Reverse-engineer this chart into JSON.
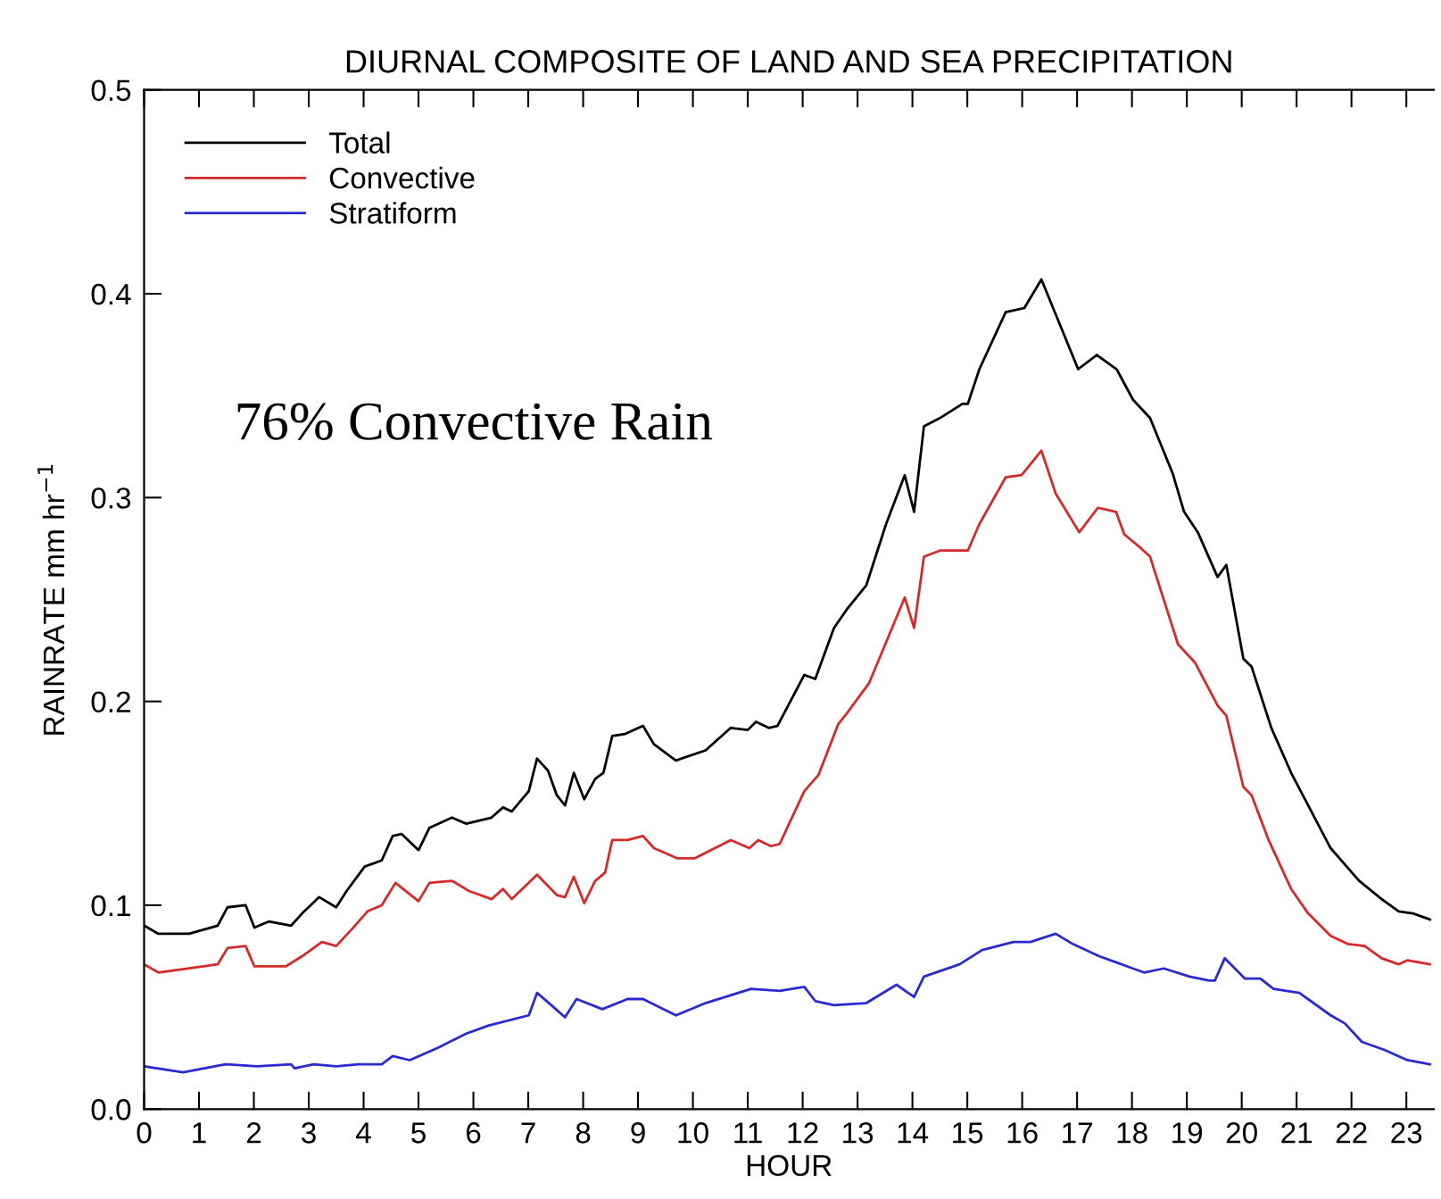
{
  "chart_data": {
    "type": "line",
    "title": "DIURNAL COMPOSITE OF LAND AND SEA PRECIPITATION",
    "xlabel": "HOUR",
    "ylabel": "RAINRATE mm hr$^{−1}$",
    "annotations": [
      "76% Convective Rain"
    ],
    "xlim": [
      0,
      23.5
    ],
    "xticks": [
      0,
      1,
      2,
      3,
      4,
      5,
      6,
      7,
      8,
      9,
      10,
      11,
      12,
      13,
      14,
      15,
      16,
      17,
      18,
      19,
      20,
      21,
      22,
      23
    ],
    "ylim": [
      0,
      0.5
    ],
    "yticks": [
      {
        "value": 0,
        "label": "0.0"
      },
      0.1,
      0.2,
      0.3,
      0.4,
      0.5
    ],
    "grid": false,
    "legend": "top left",
    "marker": "none",
    "line_style": "solid",
    "series": [
      {
        "name": "Total",
        "color": "#000000",
        "x": [
          0,
          0.26,
          0.82,
          1.34,
          1.52,
          1.85,
          2.01,
          2.27,
          2.68,
          2.88,
          3.19,
          3.5,
          3.69,
          4.02,
          4.33,
          4.53,
          4.69,
          5.0,
          5.2,
          5.61,
          5.87,
          6.33,
          6.54,
          6.7,
          7.01,
          7.16,
          7.36,
          7.52,
          7.67,
          7.83,
          8.02,
          8.22,
          8.37,
          8.53,
          8.76,
          9.09,
          9.29,
          9.69,
          10.23,
          10.69,
          11.0,
          11.15,
          11.38,
          11.54,
          12.03,
          12.23,
          12.57,
          12.8,
          13.16,
          13.52,
          13.86,
          14.03,
          14.21,
          14.5,
          14.91,
          15.01,
          15.22,
          15.7,
          16.04,
          16.35,
          17.02,
          17.36,
          17.72,
          18.02,
          18.33,
          18.74,
          18.95,
          19.2,
          19.56,
          19.72,
          20.03,
          20.18,
          20.54,
          20.9,
          21.62,
          22.14,
          22.55,
          22.86,
          23.12,
          23.43
        ],
        "values": [
          0.09,
          0.086,
          0.086,
          0.09,
          0.099,
          0.1,
          0.089,
          0.092,
          0.09,
          0.096,
          0.104,
          0.099,
          0.107,
          0.119,
          0.122,
          0.134,
          0.135,
          0.127,
          0.138,
          0.143,
          0.14,
          0.143,
          0.148,
          0.146,
          0.156,
          0.172,
          0.166,
          0.154,
          0.149,
          0.165,
          0.152,
          0.162,
          0.165,
          0.183,
          0.184,
          0.188,
          0.179,
          0.171,
          0.176,
          0.187,
          0.186,
          0.19,
          0.187,
          0.188,
          0.213,
          0.211,
          0.236,
          0.245,
          0.257,
          0.287,
          0.311,
          0.293,
          0.335,
          0.339,
          0.346,
          0.346,
          0.363,
          0.391,
          0.393,
          0.407,
          0.363,
          0.37,
          0.363,
          0.348,
          0.339,
          0.312,
          0.293,
          0.283,
          0.261,
          0.267,
          0.221,
          0.217,
          0.187,
          0.165,
          0.128,
          0.112,
          0.103,
          0.097,
          0.096,
          0.093
        ]
      },
      {
        "name": "Convective",
        "color": "#d42a2a",
        "x": [
          0,
          0.26,
          0.82,
          1.34,
          1.52,
          1.85,
          2.01,
          2.58,
          2.88,
          3.24,
          3.5,
          3.81,
          4.07,
          4.33,
          4.58,
          5.0,
          5.2,
          5.61,
          5.92,
          6.33,
          6.54,
          6.7,
          7.16,
          7.52,
          7.67,
          7.83,
          8.02,
          8.22,
          8.4,
          8.53,
          8.81,
          9.09,
          9.29,
          9.72,
          10.03,
          10.69,
          11.03,
          11.19,
          11.42,
          11.58,
          12.03,
          12.29,
          12.65,
          12.8,
          13.21,
          13.52,
          13.86,
          14.03,
          14.21,
          14.5,
          15.01,
          15.22,
          15.7,
          15.99,
          16.35,
          16.61,
          17.04,
          17.38,
          17.71,
          17.86,
          18.17,
          18.33,
          18.84,
          19.15,
          19.56,
          19.72,
          20.03,
          20.18,
          20.49,
          20.9,
          21.21,
          21.62,
          21.93,
          22.24,
          22.55,
          22.86,
          23.02,
          23.43
        ],
        "values": [
          0.071,
          0.067,
          0.069,
          0.071,
          0.079,
          0.08,
          0.07,
          0.07,
          0.075,
          0.082,
          0.08,
          0.089,
          0.097,
          0.1,
          0.111,
          0.102,
          0.111,
          0.112,
          0.107,
          0.103,
          0.108,
          0.103,
          0.115,
          0.105,
          0.104,
          0.114,
          0.101,
          0.112,
          0.116,
          0.132,
          0.132,
          0.134,
          0.128,
          0.123,
          0.123,
          0.132,
          0.128,
          0.132,
          0.129,
          0.13,
          0.156,
          0.164,
          0.189,
          0.194,
          0.209,
          0.229,
          0.251,
          0.236,
          0.271,
          0.274,
          0.274,
          0.287,
          0.31,
          0.311,
          0.323,
          0.302,
          0.283,
          0.295,
          0.293,
          0.282,
          0.275,
          0.271,
          0.228,
          0.219,
          0.198,
          0.193,
          0.158,
          0.154,
          0.132,
          0.108,
          0.096,
          0.085,
          0.081,
          0.08,
          0.074,
          0.071,
          0.073,
          0.071
        ]
      },
      {
        "name": "Stratiform",
        "color": "#2a2ad0",
        "x": [
          0,
          0.71,
          1.48,
          2.06,
          2.68,
          2.74,
          3.09,
          3.5,
          3.91,
          4.33,
          4.53,
          4.84,
          5.35,
          5.87,
          6.28,
          7.01,
          7.16,
          7.42,
          7.67,
          7.88,
          8.35,
          8.81,
          9.09,
          9.69,
          10.23,
          11.06,
          11.58,
          12.03,
          12.23,
          12.57,
          13.16,
          13.71,
          14.03,
          14.21,
          14.86,
          15.27,
          15.84,
          16.15,
          16.61,
          16.92,
          17.4,
          17.71,
          18.22,
          18.58,
          19.05,
          19.41,
          19.51,
          19.69,
          20.06,
          20.34,
          20.58,
          21.05,
          21.62,
          21.88,
          22.19,
          22.6,
          23.02,
          23.43
        ],
        "values": [
          0.021,
          0.018,
          0.022,
          0.021,
          0.022,
          0.02,
          0.022,
          0.021,
          0.022,
          0.022,
          0.026,
          0.024,
          0.03,
          0.037,
          0.041,
          0.046,
          0.057,
          0.051,
          0.045,
          0.054,
          0.049,
          0.054,
          0.054,
          0.046,
          0.052,
          0.059,
          0.058,
          0.06,
          0.053,
          0.051,
          0.052,
          0.061,
          0.055,
          0.065,
          0.071,
          0.078,
          0.082,
          0.082,
          0.086,
          0.081,
          0.075,
          0.072,
          0.067,
          0.069,
          0.065,
          0.063,
          0.063,
          0.074,
          0.064,
          0.064,
          0.059,
          0.057,
          0.046,
          0.042,
          0.033,
          0.029,
          0.024,
          0.022
        ]
      }
    ]
  }
}
